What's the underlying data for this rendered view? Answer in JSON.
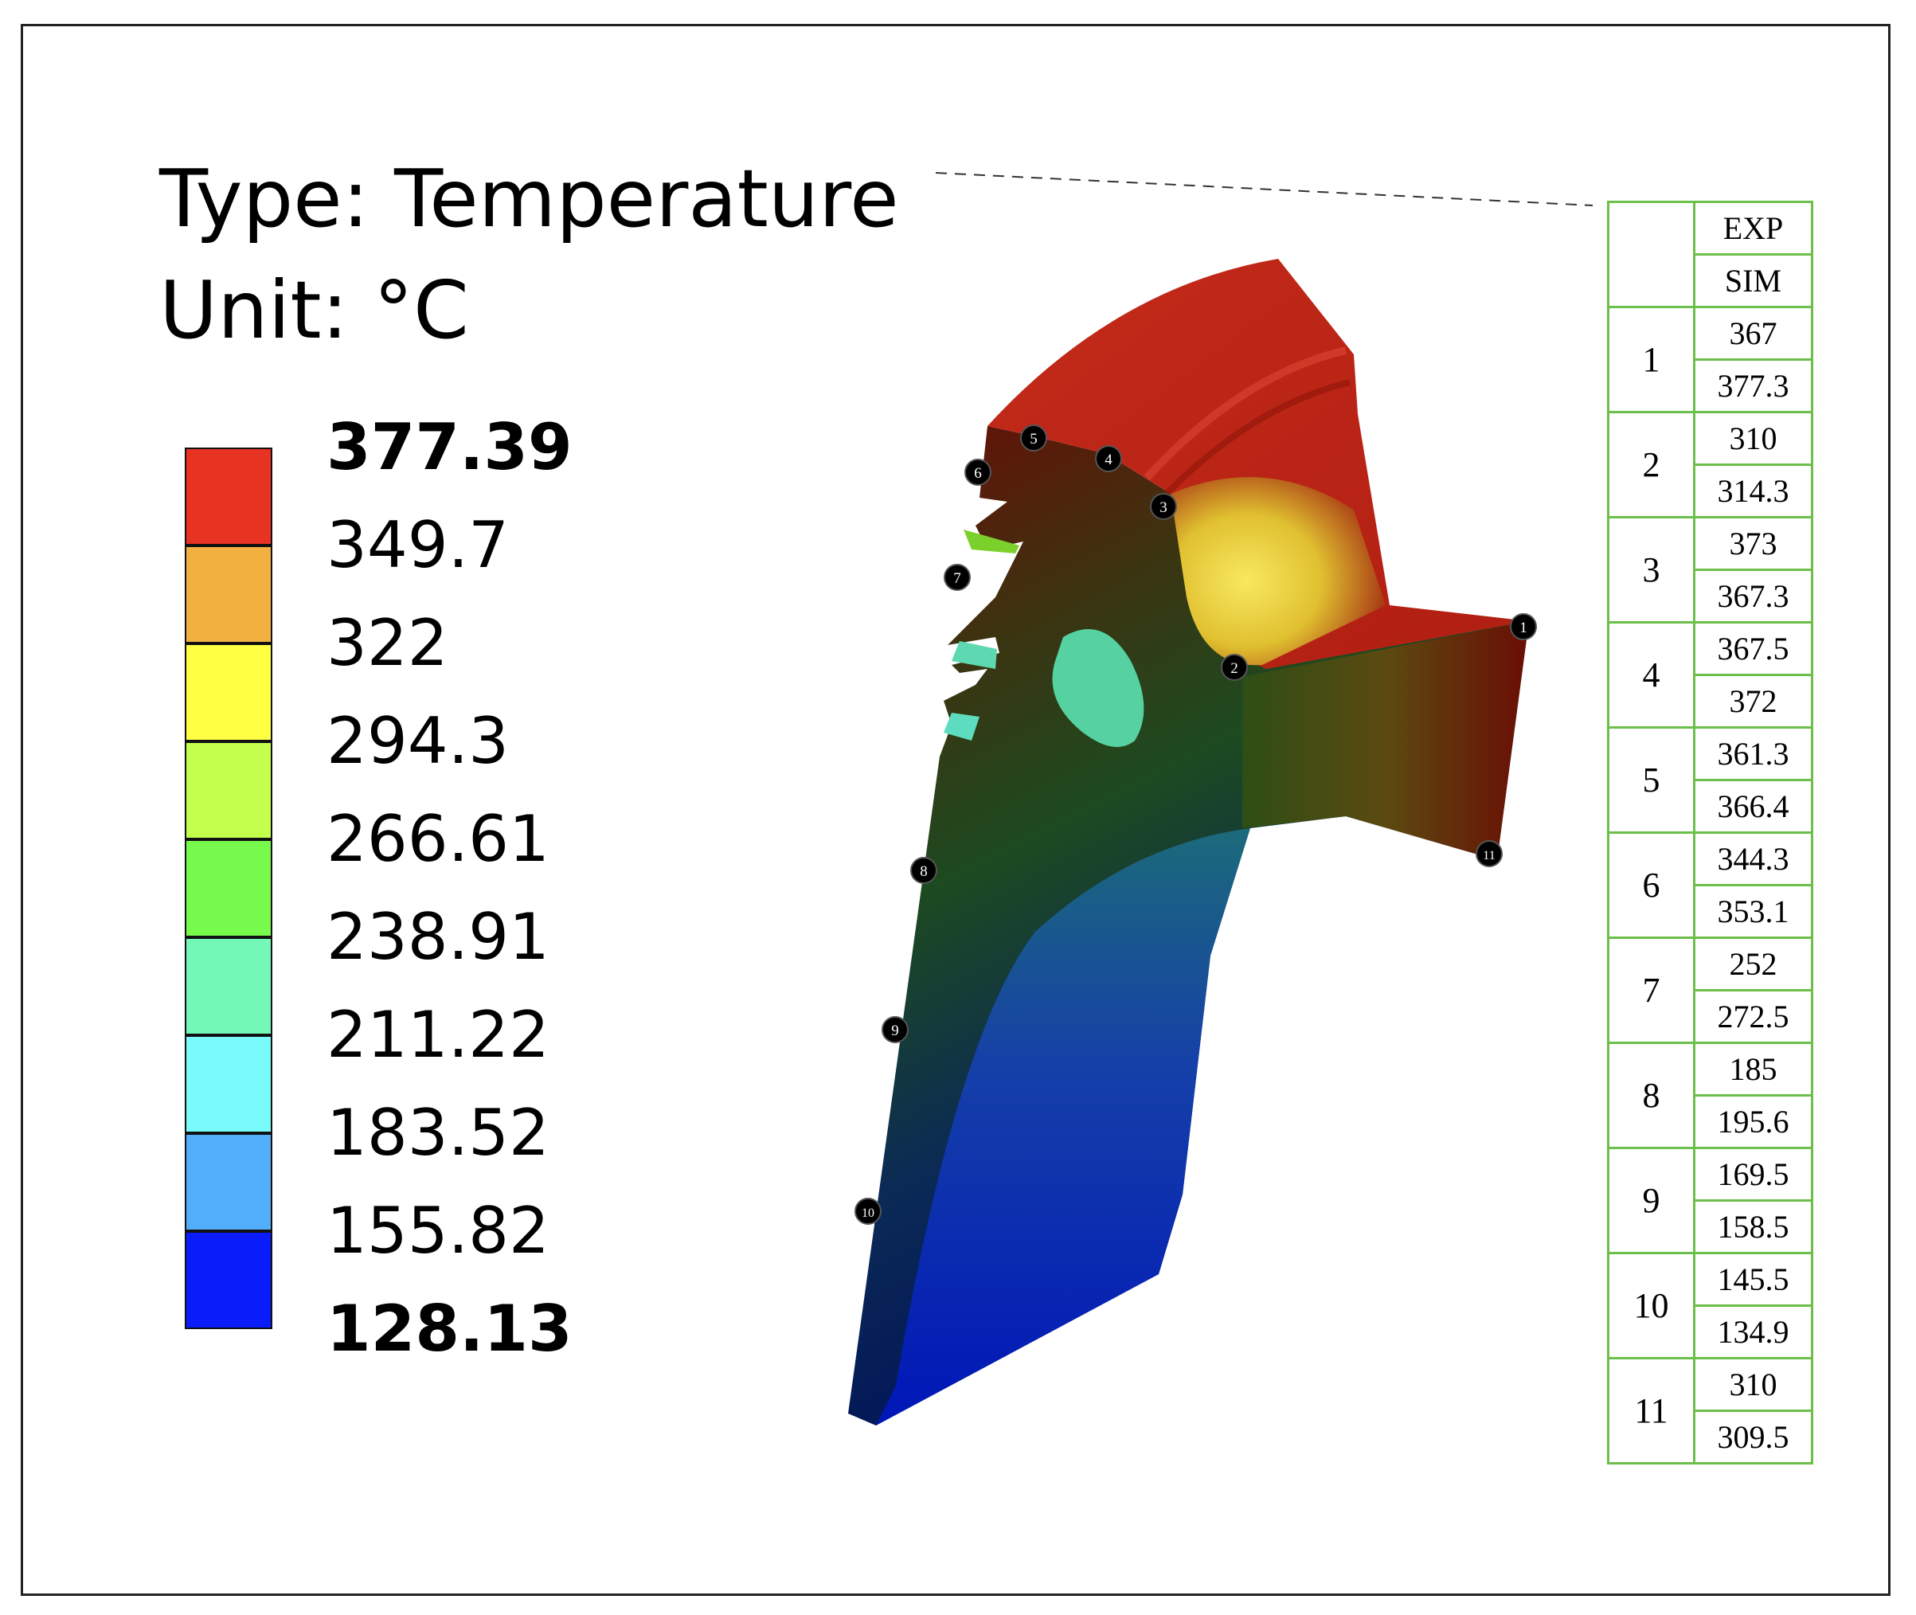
{
  "title": {
    "line1": "Type: Temperature",
    "line2": "Unit: °C"
  },
  "legend": {
    "colors": [
      "#e83222",
      "#f2b040",
      "#ffff44",
      "#c4ff4e",
      "#78fa4c",
      "#74f8b8",
      "#78fbfa",
      "#52aefa",
      "#0a1cfa"
    ],
    "labels": [
      {
        "text": "377.39",
        "bold": true
      },
      {
        "text": "349.7",
        "bold": false
      },
      {
        "text": "322",
        "bold": false
      },
      {
        "text": "294.3",
        "bold": false
      },
      {
        "text": "266.61",
        "bold": false
      },
      {
        "text": "238.91",
        "bold": false
      },
      {
        "text": "211.22",
        "bold": false
      },
      {
        "text": "183.52",
        "bold": false
      },
      {
        "text": "155.82",
        "bold": false
      },
      {
        "text": "128.13",
        "bold": true
      }
    ]
  },
  "markers": [
    "1",
    "2",
    "3",
    "4",
    "5",
    "6",
    "7",
    "8",
    "9",
    "10",
    "11"
  ],
  "table": {
    "header_exp": "EXP",
    "header_sim": "SIM",
    "rows": [
      {
        "point": "1",
        "exp": "367",
        "sim": "377.3"
      },
      {
        "point": "2",
        "exp": "310",
        "sim": "314.3"
      },
      {
        "point": "3",
        "exp": "373",
        "sim": "367.3"
      },
      {
        "point": "4",
        "exp": "367.5",
        "sim": "372"
      },
      {
        "point": "5",
        "exp": "361.3",
        "sim": "366.4"
      },
      {
        "point": "6",
        "exp": "344.3",
        "sim": "353.1"
      },
      {
        "point": "7",
        "exp": "252",
        "sim": "272.5"
      },
      {
        "point": "8",
        "exp": "185",
        "sim": "195.6"
      },
      {
        "point": "9",
        "exp": "169.5",
        "sim": "158.5"
      },
      {
        "point": "10",
        "exp": "145.5",
        "sim": "134.9"
      },
      {
        "point": "11",
        "exp": "310",
        "sim": "309.5"
      }
    ]
  }
}
